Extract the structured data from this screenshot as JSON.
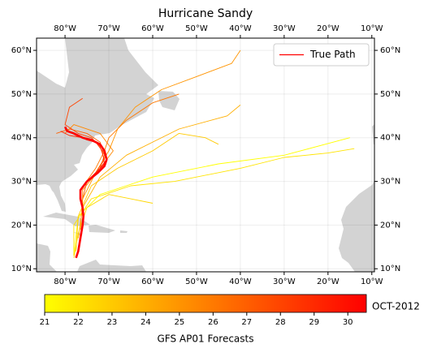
{
  "chart_data": {
    "type": "map",
    "title": "Hurricane Sandy",
    "xlim": [
      -86.5,
      -9.4
    ],
    "ylim": [
      9.3,
      62.8
    ],
    "xticks": [
      {
        "value": -80,
        "label": "80°W"
      },
      {
        "value": -70,
        "label": "70°W"
      },
      {
        "value": -60,
        "label": "60°W"
      },
      {
        "value": -50,
        "label": "50°W"
      },
      {
        "value": -40,
        "label": "40°W"
      },
      {
        "value": -30,
        "label": "30°W"
      },
      {
        "value": -20,
        "label": "20°W"
      },
      {
        "value": -10,
        "label": "10°W"
      }
    ],
    "yticks": [
      {
        "value": 10,
        "label": "10°N"
      },
      {
        "value": 20,
        "label": "20°N"
      },
      {
        "value": 30,
        "label": "30°N"
      },
      {
        "value": 40,
        "label": "40°N"
      },
      {
        "value": 50,
        "label": "50°N"
      },
      {
        "value": 60,
        "label": "60°N"
      }
    ],
    "grid": true,
    "legend": "upper right",
    "true_path": {
      "name": "True Path",
      "color": "#ff0000",
      "lon": [
        -77.5,
        -77,
        -76.5,
        -76,
        -75.8,
        -76,
        -76.5,
        -76.5,
        -75,
        -72.5,
        -71,
        -70.5,
        -71,
        -72,
        -74,
        -76,
        -77,
        -78,
        -79.5,
        -80
      ],
      "lat": [
        12.5,
        14,
        17,
        20,
        22,
        24,
        26,
        28,
        30,
        32,
        33.5,
        35,
        37,
        38.5,
        39.5,
        40,
        40.5,
        41,
        41.5,
        42.5
      ]
    },
    "tracks": [
      {
        "init": 21,
        "lon": [
          -78,
          -77,
          -72,
          -60,
          -45,
          -30,
          -15
        ],
        "lat": [
          13,
          22,
          27,
          31,
          34,
          36,
          40
        ]
      },
      {
        "init": 22,
        "lon": [
          -78,
          -78,
          -74,
          -65,
          -55,
          -40,
          -30,
          -20,
          -14
        ],
        "lat": [
          13,
          20,
          26,
          29,
          30,
          33,
          35.5,
          36.5,
          37.5
        ]
      },
      {
        "init": 22.5,
        "lon": [
          -78,
          -77,
          -75,
          -70,
          -65,
          -60
        ],
        "lat": [
          12.5,
          18,
          24,
          27,
          26,
          25
        ]
      },
      {
        "init": 23,
        "lon": [
          -77.5,
          -77,
          -74,
          -68,
          -60,
          -54,
          -48,
          -45
        ],
        "lat": [
          14,
          22,
          29,
          33,
          37,
          41,
          40,
          38.5
        ]
      },
      {
        "init": 24,
        "lon": [
          -77,
          -76,
          -72,
          -66,
          -60,
          -54,
          -43,
          -40
        ],
        "lat": [
          17,
          24,
          31,
          36,
          39,
          42,
          45,
          47.5
        ]
      },
      {
        "init": 25,
        "lon": [
          -76.5,
          -76,
          -73,
          -70,
          -68,
          -64,
          -58,
          -50,
          -42,
          -40
        ],
        "lat": [
          19,
          26,
          32,
          37,
          42,
          47,
          51,
          54,
          57,
          60
        ]
      },
      {
        "init": 25.5,
        "lon": [
          -76,
          -76,
          -72,
          -69,
          -72,
          -78,
          -80
        ],
        "lat": [
          22,
          28,
          33,
          37,
          41,
          43,
          41
        ]
      },
      {
        "init": 26,
        "lon": [
          -76,
          -76.5,
          -73,
          -71,
          -70,
          -66,
          -60,
          -54
        ],
        "lat": [
          23,
          28,
          33,
          37,
          40,
          44,
          48,
          50
        ]
      },
      {
        "init": 27,
        "lon": [
          -76,
          -75,
          -72,
          -71,
          -72,
          -75,
          -79,
          -82
        ],
        "lat": [
          26,
          30,
          33,
          36,
          39,
          41,
          42,
          41
        ]
      },
      {
        "init": 28,
        "lon": [
          -76.5,
          -73,
          -71,
          -72,
          -74,
          -77,
          -80,
          -79,
          -76
        ],
        "lat": [
          28,
          32,
          35,
          38,
          40,
          41,
          43,
          47,
          49
        ]
      },
      {
        "init": 29,
        "lon": [
          -74,
          -71,
          -71.5,
          -73,
          -76,
          -79,
          -81
        ],
        "lat": [
          31,
          34,
          37,
          39,
          40,
          40.5,
          41.5
        ]
      },
      {
        "init": 30,
        "lon": [
          -72,
          -70.5,
          -71,
          -72.5,
          -75,
          -77.5,
          -80
        ],
        "lat": [
          33,
          35,
          37,
          38.8,
          39.5,
          40.5,
          42
        ]
      }
    ],
    "colorbar": {
      "label": "GFS AP01 Forecasts",
      "unit": "OCT-2012",
      "clim": [
        21,
        30.55
      ],
      "ticks": [
        21,
        22,
        23,
        24,
        25,
        26,
        27,
        28,
        29,
        30
      ],
      "cmap": [
        "#ffff00",
        "#ff0000"
      ]
    }
  }
}
